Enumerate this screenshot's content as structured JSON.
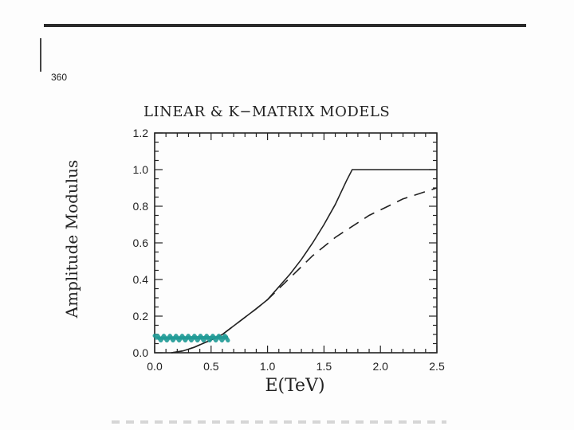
{
  "page": {
    "number": "360"
  },
  "chart_data": {
    "type": "line",
    "title": "LINEAR & K−MATRIX MODELS",
    "xlabel": "E(TeV)",
    "ylabel": "Amplitude Modulus",
    "xlim": [
      0.0,
      2.5
    ],
    "ylim": [
      0.0,
      1.2
    ],
    "xticks": [
      "0.0",
      "0.5",
      "1.0",
      "1.5",
      "2.0",
      "2.5"
    ],
    "yticks": [
      "0.0",
      "0.2",
      "0.4",
      "0.6",
      "0.8",
      "1.0",
      "1.2"
    ],
    "grid": false,
    "series": [
      {
        "style": "solid",
        "color": "#222222",
        "x": [
          0.15,
          0.25,
          0.35,
          0.5,
          0.6,
          0.75,
          0.9,
          1.0,
          1.1,
          1.2,
          1.3,
          1.4,
          1.5,
          1.6,
          1.7,
          1.75,
          2.0,
          2.25,
          2.5
        ],
        "y": [
          0.0,
          0.01,
          0.03,
          0.07,
          0.1,
          0.17,
          0.24,
          0.29,
          0.36,
          0.43,
          0.51,
          0.6,
          0.7,
          0.81,
          0.94,
          1.0,
          1.0,
          1.0,
          1.0
        ]
      },
      {
        "style": "dashed",
        "color": "#222222",
        "x": [
          0.15,
          0.25,
          0.35,
          0.5,
          0.6,
          0.75,
          0.9,
          1.0,
          1.1,
          1.2,
          1.3,
          1.4,
          1.5,
          1.6,
          1.7,
          1.8,
          1.9,
          2.0,
          2.1,
          2.2,
          2.3,
          2.4,
          2.5
        ],
        "y": [
          0.0,
          0.01,
          0.03,
          0.07,
          0.1,
          0.17,
          0.24,
          0.29,
          0.35,
          0.41,
          0.47,
          0.53,
          0.58,
          0.63,
          0.67,
          0.71,
          0.75,
          0.78,
          0.81,
          0.84,
          0.86,
          0.88,
          0.9
        ]
      }
    ],
    "annotations": [
      {
        "type": "highlight-stroke",
        "color": "#1f9a96",
        "x_range": [
          0.0,
          0.65
        ],
        "y": 0.08
      }
    ]
  }
}
